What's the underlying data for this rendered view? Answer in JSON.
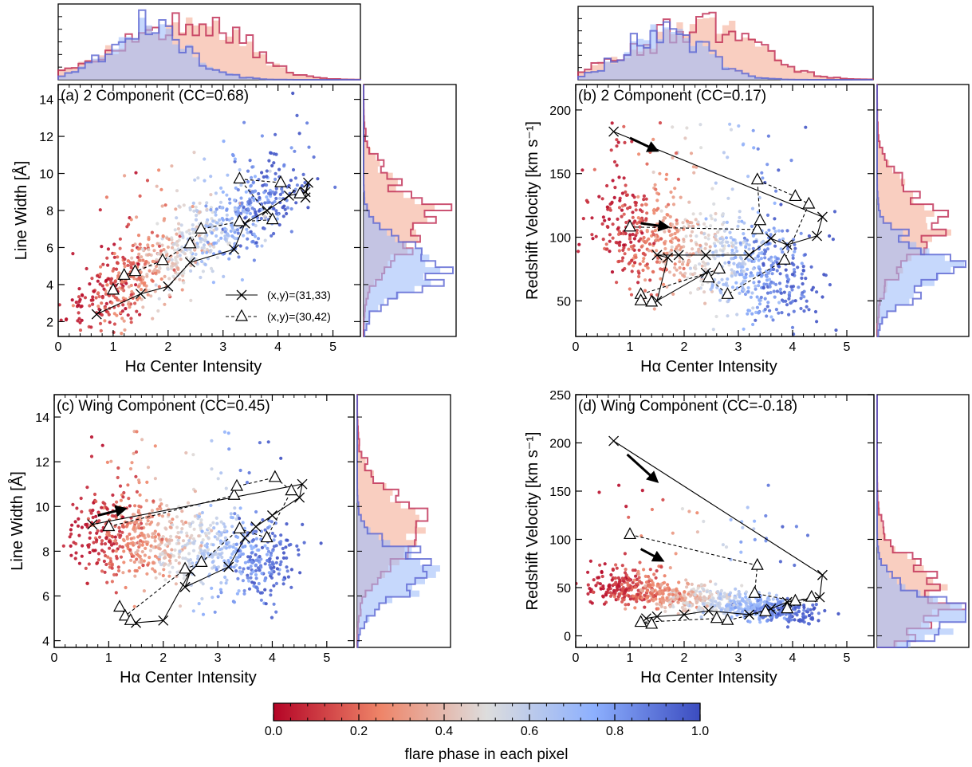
{
  "figure": {
    "colorbar": {
      "label": "flare phase in each pixel",
      "ticks": [
        "0.0",
        "0.2",
        "0.4",
        "0.6",
        "0.8",
        "1.0"
      ],
      "colormap": "coolwarm_r",
      "low_color": "#b40426",
      "mid_color": "#dddddd",
      "high_color": "#3b4cc0"
    },
    "legend": {
      "entries": [
        {
          "label": "(x,y)=(31,33)",
          "marker": "x",
          "linestyle": "solid"
        },
        {
          "label": "(x,y)=(30,42)",
          "marker": "triangle",
          "linestyle": "dashed"
        }
      ]
    }
  },
  "chart_data": [
    {
      "type": "scatter",
      "panel": "a",
      "title": "(a) 2 Component (CC=0.68)",
      "xlabel": "Hα Center Intensity",
      "ylabel": "Line Width [Å]",
      "xlim": [
        0,
        5.5
      ],
      "ylim": [
        1.2,
        14.8
      ],
      "xticks": [
        0,
        1,
        2,
        3,
        4,
        5
      ],
      "yticks": [
        2,
        4,
        6,
        8,
        10,
        12,
        14
      ],
      "legend_position": "lower-right",
      "scatter_note": "approx. 1000 pixels, colored by flare phase (0 red to 1 blue); dense cloud around x=1-3.5, y=3-9",
      "series": [
        {
          "name": "(x,y)=(31,33)",
          "marker": "x",
          "linestyle": "solid",
          "points": [
            [
              0.7,
              2.4
            ],
            [
              1.5,
              3.5
            ],
            [
              2.0,
              3.9
            ],
            [
              2.4,
              5.2
            ],
            [
              3.2,
              5.9
            ],
            [
              3.4,
              7.3
            ],
            [
              3.8,
              8.0
            ],
            [
              4.2,
              8.8
            ],
            [
              4.5,
              9.0
            ],
            [
              4.55,
              9.5
            ],
            [
              4.5,
              8.7
            ]
          ]
        },
        {
          "name": "(x,y)=(30,42)",
          "marker": "triangle",
          "linestyle": "dashed",
          "points": [
            [
              1.0,
              3.7
            ],
            [
              1.2,
              4.5
            ],
            [
              1.4,
              4.7
            ],
            [
              1.9,
              5.3
            ],
            [
              2.4,
              6.2
            ],
            [
              2.6,
              7.0
            ],
            [
              3.3,
              7.4
            ],
            [
              3.9,
              7.5
            ],
            [
              3.3,
              9.7
            ],
            [
              4.05,
              9.5
            ],
            [
              4.4,
              8.9
            ]
          ]
        }
      ],
      "top_histogram": {
        "series": [
          "phase<0.5 (red)",
          "phase>0.5 (blue)"
        ],
        "peak_x": [
          1.8,
          1.6
        ]
      },
      "right_histogram": {
        "series": [
          "phase<0.5 (red)",
          "phase>0.5 (blue)"
        ],
        "peak_y": [
          7.5,
          5.0
        ]
      }
    },
    {
      "type": "scatter",
      "panel": "b",
      "title": "(b) 2 Component (CC=0.17)",
      "xlabel": "Hα Center Intensity",
      "ylabel": "Redshift Velocity [km s⁻¹]",
      "xlim": [
        0,
        5.5
      ],
      "ylim": [
        22,
        220
      ],
      "xticks": [
        0,
        1,
        2,
        3,
        4,
        5
      ],
      "yticks": [
        50,
        100,
        150,
        200
      ],
      "arrows": [
        {
          "from": [
            1.0,
            178
          ],
          "to": [
            1.5,
            168
          ]
        },
        {
          "from": [
            1.2,
            111
          ],
          "to": [
            1.7,
            108
          ]
        }
      ],
      "series": [
        {
          "name": "(x,y)=(31,33)",
          "marker": "x",
          "linestyle": "solid",
          "points": [
            [
              0.7,
              183
            ],
            [
              4.55,
              116
            ],
            [
              4.45,
              101
            ],
            [
              3.9,
              94
            ],
            [
              3.6,
              99
            ],
            [
              3.2,
              86
            ],
            [
              2.4,
              86
            ],
            [
              1.9,
              86
            ],
            [
              1.5,
              86
            ],
            [
              1.7,
              84
            ],
            [
              1.5,
              50
            ],
            [
              2.4,
              72
            ]
          ]
        },
        {
          "name": "(x,y)=(30,42)",
          "marker": "triangle",
          "linestyle": "dashed",
          "points": [
            [
              1.0,
              108
            ],
            [
              3.35,
              106
            ],
            [
              3.4,
              113
            ],
            [
              3.35,
              145
            ],
            [
              4.05,
              132
            ],
            [
              4.3,
              126
            ],
            [
              3.85,
              82
            ],
            [
              2.8,
              55
            ],
            [
              2.45,
              68
            ],
            [
              2.65,
              75
            ],
            [
              1.2,
              55
            ],
            [
              1.2,
              50
            ],
            [
              1.4,
              49
            ]
          ]
        }
      ],
      "top_histogram": {
        "series": [
          "phase<0.5 (red)",
          "phase>0.5 (blue)"
        ],
        "peak_x": [
          1.9,
          1.6
        ]
      },
      "right_histogram": {
        "series": [
          "phase<0.5 (red)",
          "phase>0.5 (blue)"
        ],
        "peak_y": [
          110,
          75
        ]
      }
    },
    {
      "type": "scatter",
      "panel": "c",
      "title": "(c) Wing Component (CC=0.45)",
      "xlabel": "Hα Center Intensity",
      "ylabel": "Line Width [Å]",
      "xlim": [
        0,
        5.5
      ],
      "ylim": [
        3.7,
        15.0
      ],
      "xticks": [
        0,
        1,
        2,
        3,
        4,
        5
      ],
      "yticks": [
        4,
        6,
        8,
        10,
        12,
        14
      ],
      "arrows": [
        {
          "from": [
            0.8,
            9.6
          ],
          "to": [
            1.3,
            9.9
          ]
        }
      ],
      "series": [
        {
          "name": "(x,y)=(31,33)",
          "marker": "x",
          "linestyle": "solid",
          "points": [
            [
              0.7,
              9.2
            ],
            [
              4.55,
              11.0
            ],
            [
              4.5,
              10.4
            ],
            [
              4.0,
              9.6
            ],
            [
              3.7,
              9.1
            ],
            [
              3.5,
              8.6
            ],
            [
              3.2,
              7.3
            ],
            [
              2.4,
              6.4
            ],
            [
              2.5,
              7.1
            ],
            [
              2.0,
              4.9
            ],
            [
              1.5,
              4.8
            ]
          ]
        },
        {
          "name": "(x,y)=(30,42)",
          "marker": "triangle",
          "linestyle": "dashed",
          "points": [
            [
              1.0,
              9.1
            ],
            [
              3.3,
              10.5
            ],
            [
              3.35,
              10.9
            ],
            [
              4.05,
              11.3
            ],
            [
              4.35,
              10.7
            ],
            [
              3.9,
              8.6
            ],
            [
              3.4,
              9.0
            ],
            [
              2.7,
              7.5
            ],
            [
              2.4,
              7.2
            ],
            [
              1.3,
              5.1
            ],
            [
              1.4,
              4.9
            ],
            [
              1.2,
              5.5
            ]
          ]
        }
      ],
      "top_histogram": null,
      "right_histogram": {
        "series": [
          "phase<0.5 (red)",
          "phase>0.5 (blue)"
        ],
        "peak_y": [
          9.0,
          7.0
        ]
      }
    },
    {
      "type": "scatter",
      "panel": "d",
      "title": "(d) Wing Component (CC=-0.18)",
      "xlabel": "Hα Center Intensity",
      "ylabel": "Redshift Velocity [km s⁻¹]",
      "xlim": [
        0,
        5.5
      ],
      "ylim": [
        -12,
        250
      ],
      "xticks": [
        0,
        1,
        2,
        3,
        4,
        5
      ],
      "yticks": [
        0,
        50,
        100,
        150,
        200,
        250
      ],
      "arrows": [
        {
          "from": [
            0.95,
            188
          ],
          "to": [
            1.5,
            160
          ]
        },
        {
          "from": [
            1.2,
            90
          ],
          "to": [
            1.6,
            78
          ]
        }
      ],
      "series": [
        {
          "name": "(x,y)=(31,33)",
          "marker": "x",
          "linestyle": "solid",
          "points": [
            [
              0.7,
              202
            ],
            [
              4.55,
              63
            ],
            [
              4.5,
              40
            ],
            [
              3.9,
              35
            ],
            [
              3.6,
              28
            ],
            [
              3.2,
              22
            ],
            [
              2.45,
              26
            ],
            [
              2.0,
              22
            ],
            [
              1.5,
              20
            ],
            [
              1.3,
              18
            ]
          ]
        },
        {
          "name": "(x,y)=(30,42)",
          "marker": "triangle",
          "linestyle": "dashed",
          "points": [
            [
              1.0,
              105
            ],
            [
              3.35,
              73
            ],
            [
              3.3,
              44
            ],
            [
              4.05,
              36
            ],
            [
              4.35,
              40
            ],
            [
              3.9,
              28
            ],
            [
              3.5,
              25
            ],
            [
              2.8,
              16
            ],
            [
              2.6,
              18
            ],
            [
              1.2,
              14
            ],
            [
              1.4,
              12
            ]
          ]
        }
      ],
      "top_histogram": null,
      "right_histogram": {
        "series": [
          "phase<0.5 (red)",
          "phase>0.5 (blue)"
        ],
        "peak_y": [
          40,
          20
        ]
      }
    }
  ]
}
